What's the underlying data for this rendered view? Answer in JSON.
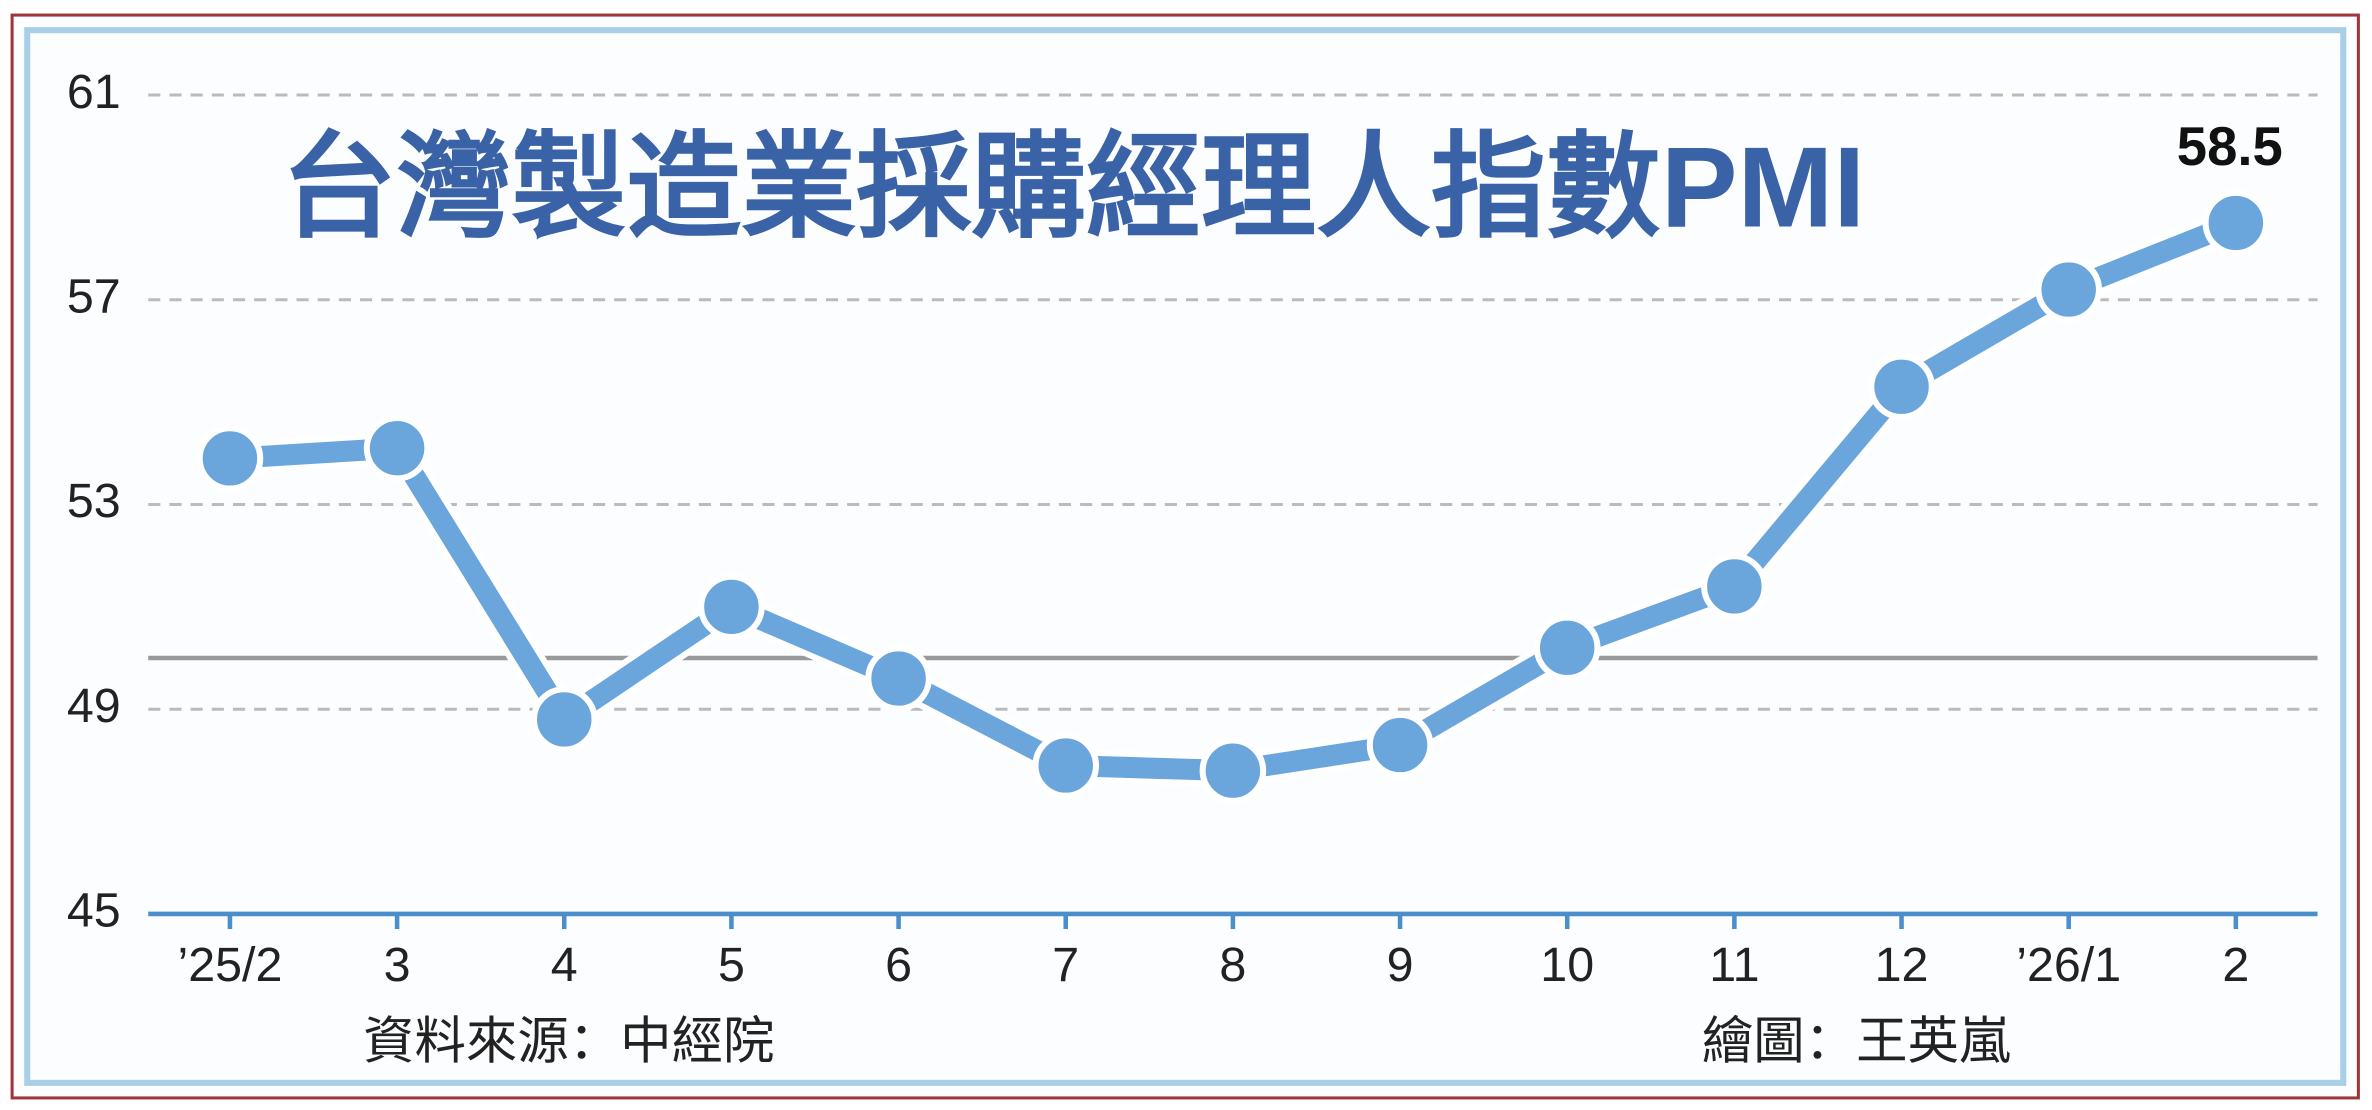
{
  "chart_data": {
    "type": "line",
    "title": "台灣製造業採購經理人指數PMI",
    "categories": [
      "’25/2",
      "3",
      "4",
      "5",
      "6",
      "7",
      "8",
      "9",
      "10",
      "11",
      "12",
      "’26/1",
      "2"
    ],
    "values": [
      53.9,
      54.1,
      48.8,
      51.0,
      49.6,
      47.9,
      47.8,
      48.3,
      50.2,
      51.4,
      55.3,
      57.2,
      58.5
    ],
    "color": "#6aa6dc",
    "ylim": [
      45,
      61
    ],
    "yticks": [
      45,
      49,
      53,
      57,
      61
    ],
    "grid": true,
    "reference_line": 50,
    "source": "資料來源：中經院",
    "credit": "繪圖：王英嵐"
  }
}
